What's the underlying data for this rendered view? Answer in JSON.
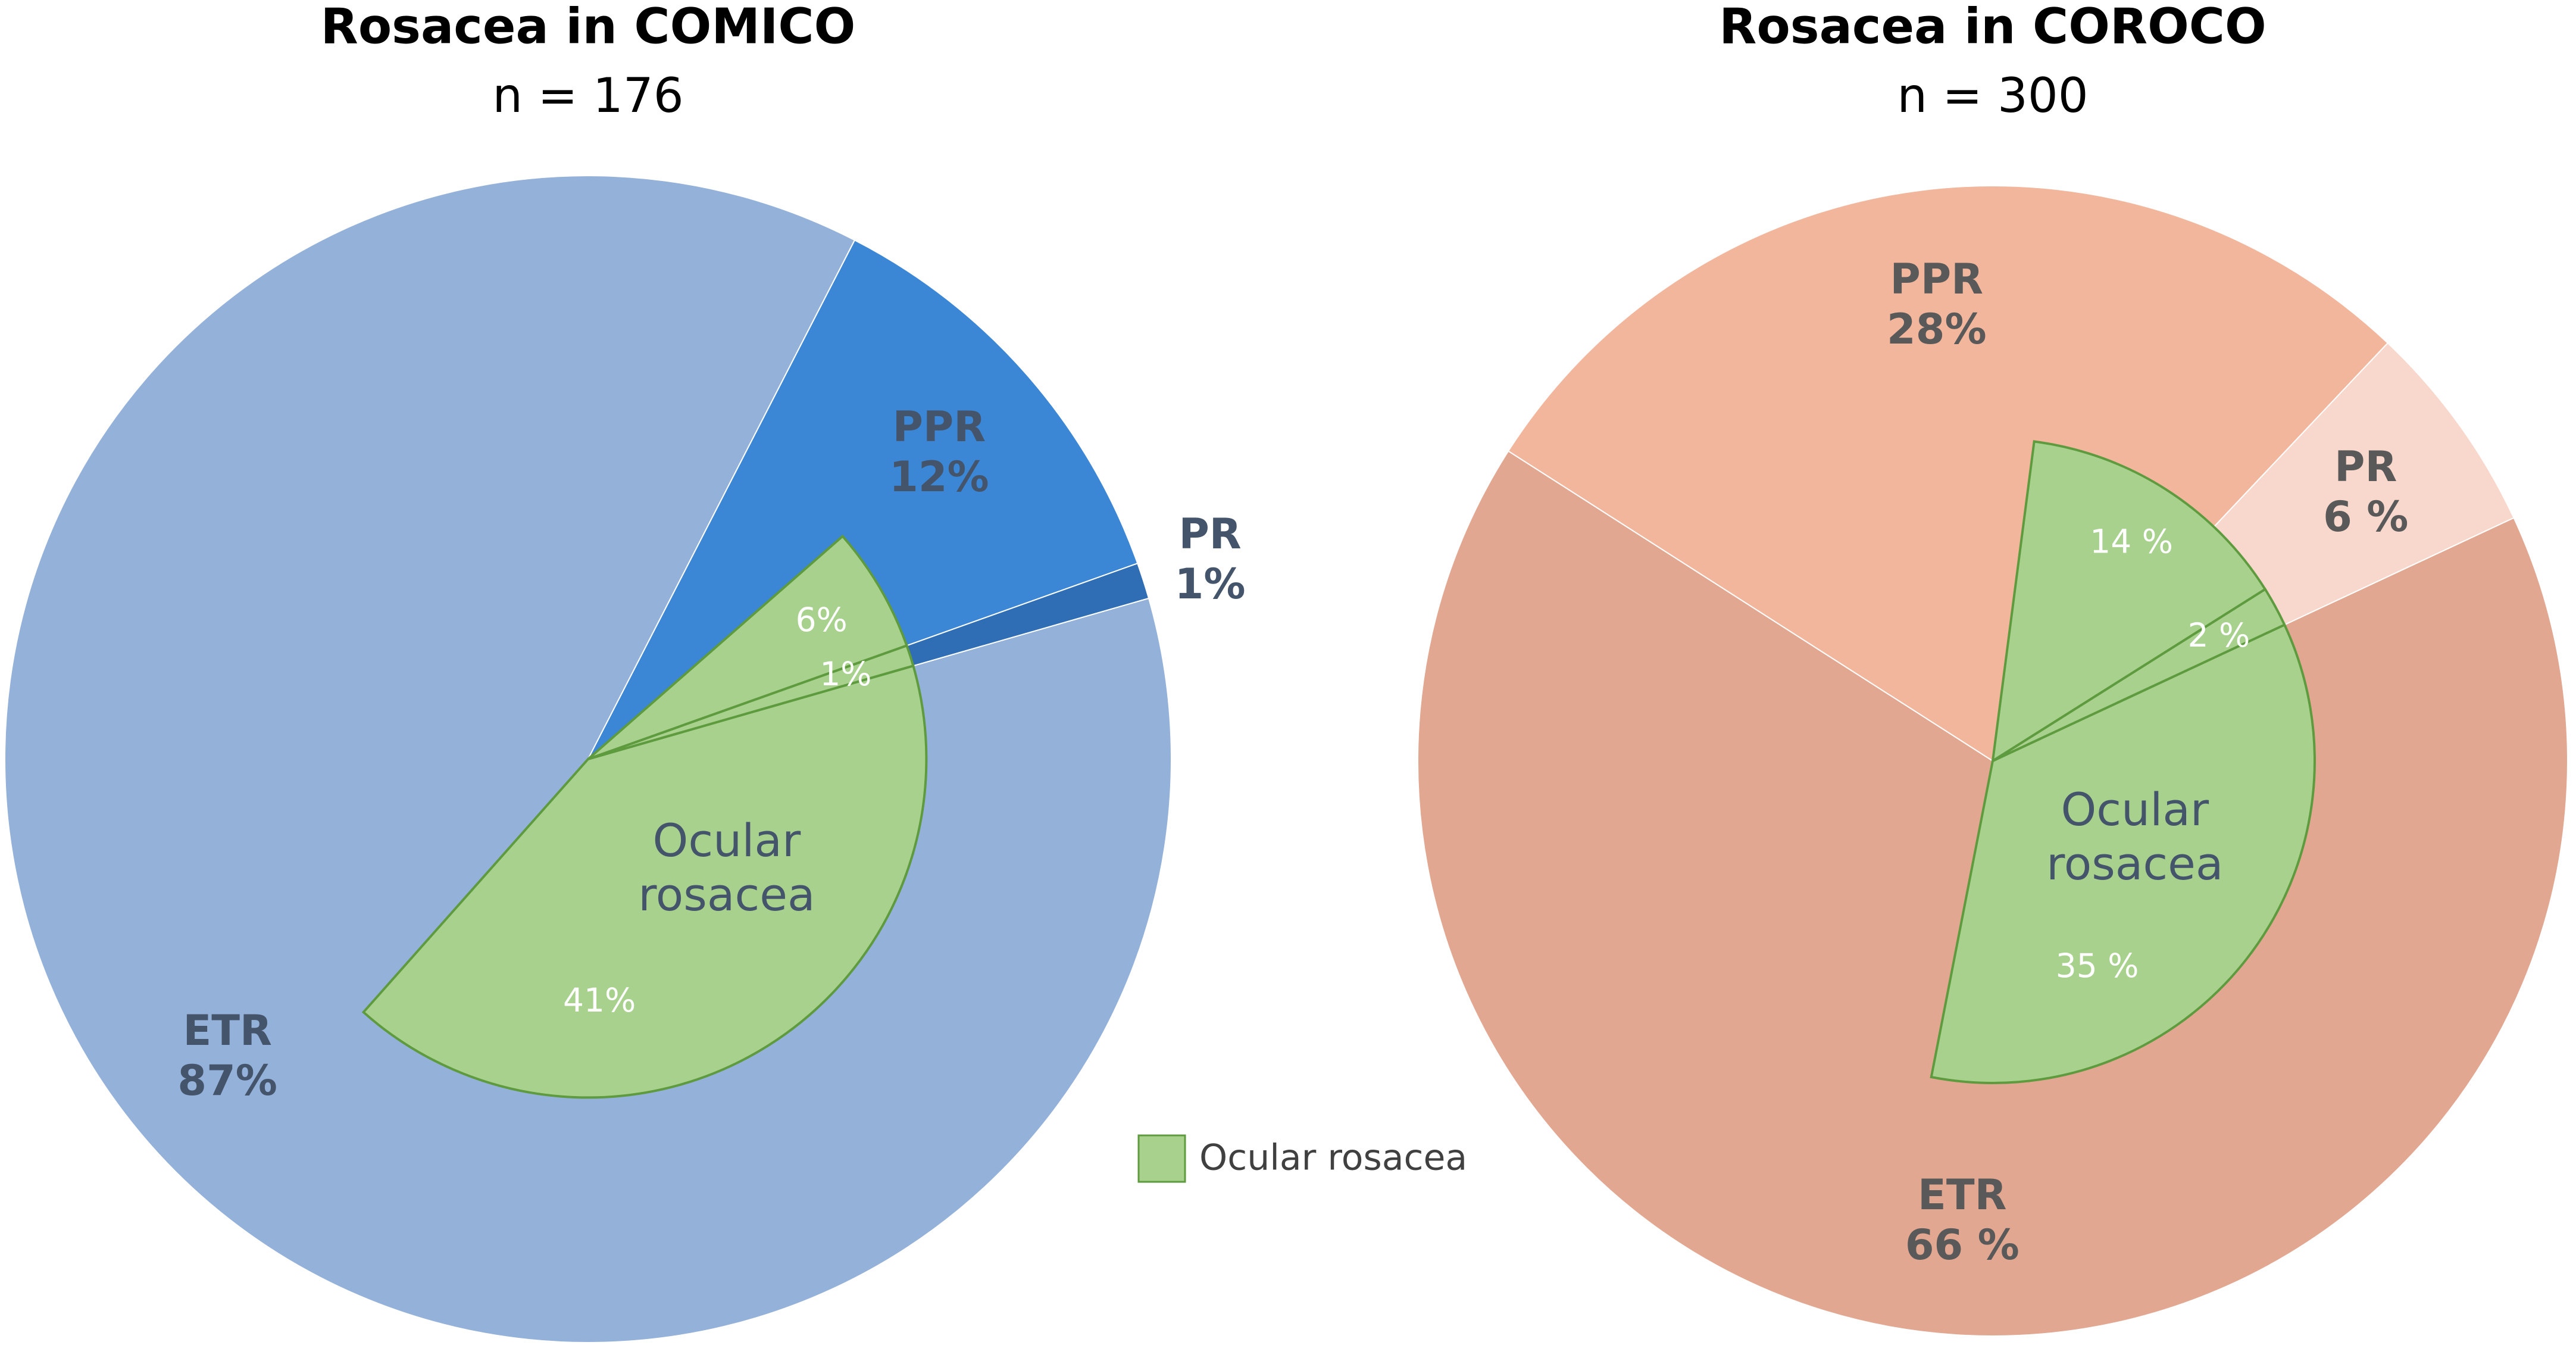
{
  "chart_data": [
    {
      "type": "pie",
      "title": "Rosacea in COMICO",
      "subtitle": "n = 176",
      "categories": [
        "ETR",
        "PPR",
        "PR"
      ],
      "values": [
        87,
        12,
        1
      ],
      "value_labels": [
        "87%",
        "12%",
        "1%"
      ],
      "colors": [
        "#94b1da",
        "#3c86d6",
        "#2f6db5"
      ],
      "overlay": {
        "name": "Ocular rosacea",
        "color": "#a9d18e",
        "values": [
          41,
          6,
          1
        ],
        "value_labels": [
          "41%",
          "6%",
          "1%"
        ]
      },
      "legend": true
    },
    {
      "type": "pie",
      "title": "Rosacea in COROCO",
      "subtitle": "n = 300",
      "categories": [
        "ETR",
        "PPR",
        "PR"
      ],
      "values": [
        66,
        28,
        6
      ],
      "value_labels": [
        "66 %",
        "28%",
        "6 %"
      ],
      "colors": [
        "#e2a791",
        "#f2b69c",
        "#f8d8cc"
      ],
      "overlay": {
        "name": "Ocular rosacea",
        "color": "#a9d18e",
        "values": [
          35,
          14,
          2
        ],
        "value_labels": [
          "35 %",
          "14 %",
          "2 %"
        ]
      },
      "legend": false
    }
  ]
}
